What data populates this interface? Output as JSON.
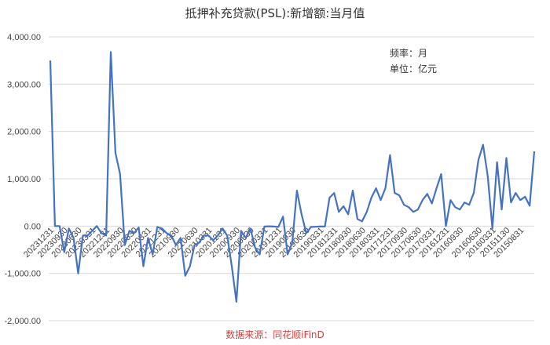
{
  "chart_data": {
    "type": "line",
    "title": "抵押补充贷款(PSL):新增额:当月值",
    "notes": [
      "频率：月",
      "单位：亿元"
    ],
    "source": "数据来源：同花顺iFinD",
    "ylim": [
      -2000,
      4000
    ],
    "yticks": [
      "4,000.00",
      "3,000.00",
      "2,000.00",
      "1,000.00",
      "0.00",
      "-1,000.00",
      "-2,000.00"
    ],
    "grid": true,
    "x_reversed": true,
    "xtick_labels": [
      "20231231",
      "20230930",
      "20230630",
      "20230331",
      "20221231",
      "20220930",
      "20220630",
      "20220331",
      "20211231",
      "20210930",
      "20210630",
      "20210331",
      "20201231",
      "20200930",
      "20200630",
      "20200331",
      "20191231",
      "20190930",
      "20190630",
      "20190331",
      "20181231",
      "20180930",
      "20180630",
      "20180331",
      "20171231",
      "20170930",
      "20170630",
      "20170331",
      "20161231",
      "20160930",
      "20160630",
      "20160331",
      "20151130",
      "20150831"
    ],
    "series": [
      {
        "color": "#4472c4",
        "values": [
          3500,
          0,
          0,
          -550,
          -50,
          -250,
          -1000,
          -200,
          -200,
          -100,
          0,
          -150,
          -200,
          3680,
          1550,
          1100,
          -400,
          -100,
          -150,
          -30,
          -850,
          -250,
          -600,
          -20,
          -50,
          -150,
          -200,
          -400,
          -250,
          -1050,
          -850,
          -400,
          -350,
          -200,
          -200,
          -300,
          -200,
          -50,
          -200,
          -850,
          -1600,
          -100,
          -250,
          -50,
          -450,
          -600,
          -10,
          -5,
          -10,
          -20,
          200,
          -600,
          -350,
          750,
          250,
          -150,
          -20,
          -15,
          -10,
          -10,
          600,
          700,
          300,
          420,
          250,
          750,
          150,
          100,
          300,
          600,
          800,
          550,
          800,
          1500,
          700,
          650,
          450,
          400,
          300,
          350,
          550,
          680,
          480,
          800,
          1100,
          0,
          550,
          400,
          350,
          500,
          450,
          700,
          1400,
          1720,
          1050,
          -50,
          1350,
          350,
          1440,
          500,
          700,
          550,
          620,
          430,
          1580
        ]
      }
    ]
  }
}
